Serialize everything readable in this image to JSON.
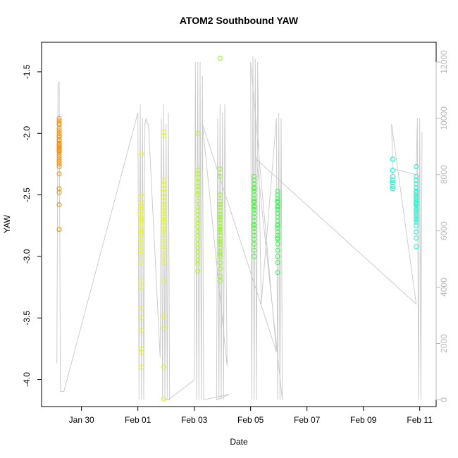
{
  "chart_data": {
    "type": "scatter",
    "title": "ATOM2 Southbound YAW",
    "xlabel": "Date",
    "ylabel": "YAW",
    "xlim": [
      "2019-01-28 14:00",
      "2019-02-11 14:00"
    ],
    "ylim": [
      -4.22,
      -1.26
    ],
    "x_ticks": [
      {
        "label": "Jan 30",
        "date": "2019-01-30"
      },
      {
        "label": "Feb 01",
        "date": "2019-02-01"
      },
      {
        "label": "Feb 03",
        "date": "2019-02-03"
      },
      {
        "label": "Feb 05",
        "date": "2019-02-05"
      },
      {
        "label": "Feb 07",
        "date": "2019-02-07"
      },
      {
        "label": "Feb 09",
        "date": "2019-02-09"
      },
      {
        "label": "Feb 11",
        "date": "2019-02-11"
      }
    ],
    "y_ticks": [
      -4.0,
      -3.5,
      -3.0,
      -2.5,
      -2.0,
      -1.5
    ],
    "y_tick_labels": [
      "-4.0",
      "-3.5",
      "-3.0",
      "-2.5",
      "-2.0",
      "-1.5"
    ],
    "right_axis": {
      "ylim": [
        -240,
        12700
      ],
      "ticks": [
        0,
        2000,
        4000,
        6000,
        8000,
        10000,
        12000
      ],
      "tick_labels": [
        "0",
        "2000",
        "4000",
        "6000",
        "8000",
        "10000",
        "12000"
      ],
      "color": "#b8b8b8"
    },
    "grid": false,
    "legend": "none",
    "series": [
      {
        "color": "#ff8c00",
        "x": [
          "2019-01-29 05:00",
          "2019-01-29 05:00",
          "2019-01-29 05:00",
          "2019-01-29 05:00",
          "2019-01-29 05:00",
          "2019-01-29 05:00",
          "2019-01-29 05:00",
          "2019-01-29 05:00",
          "2019-01-29 05:00",
          "2019-01-29 05:00",
          "2019-01-29 05:00",
          "2019-01-29 05:00",
          "2019-01-29 05:00",
          "2019-01-29 05:00",
          "2019-01-29 05:00",
          "2019-01-29 05:00",
          "2019-01-29 05:00",
          "2019-01-29 05:00",
          "2019-01-29 05:00",
          "2019-01-29 05:00",
          "2019-01-29 05:00",
          "2019-01-29 05:00",
          "2019-01-29 05:00",
          "2019-01-29 05:00",
          "2019-01-29 05:00",
          "2019-01-29 05:00",
          "2019-01-29 05:00",
          "2019-01-29 05:00",
          "2019-01-29 05:00",
          "2019-01-29 05:00"
        ],
        "y": [
          -1.88,
          -1.9,
          -1.93,
          -1.96,
          -1.98,
          -2.0,
          -2.02,
          -2.03,
          -2.05,
          -2.06,
          -2.08,
          -2.09,
          -2.1,
          -2.11,
          -2.12,
          -2.13,
          -2.14,
          -2.15,
          -2.17,
          -2.19,
          -2.21,
          -2.23,
          -2.25,
          -2.27,
          -2.33,
          -2.45,
          -2.48,
          -2.58,
          -2.78,
          -1.92
        ]
      },
      {
        "color": "#eaff00",
        "x": [
          "2019-02-01 03:00",
          "2019-02-01 03:00",
          "2019-02-01 03:00",
          "2019-02-01 03:00",
          "2019-02-01 03:00",
          "2019-02-01 03:00",
          "2019-02-01 03:00",
          "2019-02-01 03:00",
          "2019-02-01 03:00",
          "2019-02-01 03:00",
          "2019-02-01 03:00",
          "2019-02-01 03:00",
          "2019-02-01 03:00",
          "2019-02-01 03:00",
          "2019-02-01 03:00",
          "2019-02-01 03:00",
          "2019-02-01 03:00",
          "2019-02-01 03:00",
          "2019-02-01 03:00",
          "2019-02-01 03:00",
          "2019-02-01 03:00",
          "2019-02-01 03:00",
          "2019-02-01 03:00",
          "2019-02-01 03:00",
          "2019-02-01 03:00",
          "2019-02-01 03:00",
          "2019-02-01 03:00",
          "2019-02-01 03:00"
        ],
        "y": [
          -2.5,
          -2.55,
          -2.58,
          -2.62,
          -2.65,
          -2.68,
          -2.7,
          -2.72,
          -2.75,
          -2.78,
          -2.8,
          -2.82,
          -2.85,
          -2.88,
          -2.92,
          -2.95,
          -2.98,
          -3.05,
          -3.2,
          -3.25,
          -3.42,
          -3.5,
          -3.6,
          -3.75,
          -3.78,
          -3.9,
          -2.17,
          -2.6
        ]
      },
      {
        "color": "#e0ff00",
        "x": [
          "2019-02-01 22:00",
          "2019-02-01 22:00",
          "2019-02-01 22:00",
          "2019-02-01 22:00",
          "2019-02-01 22:00",
          "2019-02-01 22:00",
          "2019-02-01 22:00",
          "2019-02-01 22:00",
          "2019-02-01 22:00",
          "2019-02-01 22:00",
          "2019-02-01 22:00",
          "2019-02-01 22:00",
          "2019-02-01 22:00",
          "2019-02-01 22:00",
          "2019-02-01 22:00",
          "2019-02-01 22:00",
          "2019-02-01 22:00",
          "2019-02-01 22:00",
          "2019-02-01 22:00",
          "2019-02-01 22:00",
          "2019-02-01 22:00",
          "2019-02-01 22:00",
          "2019-02-01 22:00",
          "2019-02-01 22:00",
          "2019-02-01 22:00",
          "2019-02-01 22:00",
          "2019-02-01 22:00",
          "2019-02-01 22:00"
        ],
        "y": [
          -1.99,
          -2.02,
          -2.38,
          -2.42,
          -2.45,
          -2.48,
          -2.52,
          -2.55,
          -2.58,
          -2.6,
          -2.63,
          -2.65,
          -2.68,
          -2.7,
          -2.72,
          -2.75,
          -2.78,
          -2.8,
          -2.85,
          -2.9,
          -2.95,
          -3.0,
          -3.05,
          -3.2,
          -3.48,
          -3.58,
          -3.9,
          -4.16
        ]
      },
      {
        "color": "#a8ff00",
        "x": [
          "2019-02-03 03:00",
          "2019-02-03 03:00",
          "2019-02-03 03:00",
          "2019-02-03 03:00",
          "2019-02-03 03:00",
          "2019-02-03 03:00",
          "2019-02-03 03:00",
          "2019-02-03 03:00",
          "2019-02-03 03:00",
          "2019-02-03 03:00",
          "2019-02-03 03:00",
          "2019-02-03 03:00",
          "2019-02-03 03:00",
          "2019-02-03 03:00",
          "2019-02-03 03:00",
          "2019-02-03 03:00",
          "2019-02-03 03:00",
          "2019-02-03 03:00",
          "2019-02-03 03:00",
          "2019-02-03 03:00",
          "2019-02-03 03:00",
          "2019-02-03 03:00",
          "2019-02-03 03:00",
          "2019-02-03 03:00",
          "2019-02-03 03:00",
          "2019-02-03 03:00"
        ],
        "y": [
          -2.0,
          -2.3,
          -2.33,
          -2.36,
          -2.4,
          -2.43,
          -2.46,
          -2.5,
          -2.55,
          -2.6,
          -2.63,
          -2.66,
          -2.7,
          -2.73,
          -2.76,
          -2.8,
          -2.83,
          -2.86,
          -2.9,
          -2.93,
          -2.96,
          -3.0,
          -3.03,
          -3.06,
          -3.12,
          -2.5
        ]
      },
      {
        "color": "#88ff00",
        "x": [
          "2019-02-03 22:00",
          "2019-02-03 22:00",
          "2019-02-03 22:00",
          "2019-02-03 22:00",
          "2019-02-03 22:00",
          "2019-02-03 22:00",
          "2019-02-03 22:00",
          "2019-02-03 22:00",
          "2019-02-03 22:00",
          "2019-02-03 22:00",
          "2019-02-03 22:00",
          "2019-02-03 22:00",
          "2019-02-03 22:00",
          "2019-02-03 22:00",
          "2019-02-03 22:00",
          "2019-02-03 22:00",
          "2019-02-03 22:00",
          "2019-02-03 22:00",
          "2019-02-03 22:00",
          "2019-02-03 22:00",
          "2019-02-03 22:00",
          "2019-02-03 22:00",
          "2019-02-03 22:00",
          "2019-02-03 22:00",
          "2019-02-03 22:00",
          "2019-02-03 22:00",
          "2019-02-03 22:00"
        ],
        "y": [
          -1.39,
          -2.29,
          -2.35,
          -2.5,
          -2.55,
          -2.6,
          -2.63,
          -2.66,
          -2.7,
          -2.73,
          -2.76,
          -2.8,
          -2.83,
          -2.86,
          -2.9,
          -2.93,
          -2.96,
          -3.0,
          -3.05,
          -3.1,
          -3.16,
          -3.2,
          -2.58,
          -2.68,
          -2.78,
          -2.88,
          -2.98
        ]
      },
      {
        "color": "#3dff2e",
        "x": [
          "2019-02-05 03:00",
          "2019-02-05 03:00",
          "2019-02-05 03:00",
          "2019-02-05 03:00",
          "2019-02-05 03:00",
          "2019-02-05 03:00",
          "2019-02-05 03:00",
          "2019-02-05 03:00",
          "2019-02-05 03:00",
          "2019-02-05 03:00",
          "2019-02-05 03:00",
          "2019-02-05 03:00",
          "2019-02-05 03:00",
          "2019-02-05 03:00",
          "2019-02-05 03:00",
          "2019-02-05 03:00",
          "2019-02-05 03:00",
          "2019-02-05 03:00",
          "2019-02-05 03:00",
          "2019-02-05 03:00",
          "2019-02-05 03:00",
          "2019-02-05 03:00",
          "2019-02-05 03:00",
          "2019-02-05 03:00",
          "2019-02-05 03:00",
          "2019-02-05 03:00"
        ],
        "y": [
          -2.35,
          -2.38,
          -2.41,
          -2.44,
          -2.47,
          -2.5,
          -2.53,
          -2.56,
          -2.59,
          -2.62,
          -2.65,
          -2.68,
          -2.71,
          -2.74,
          -2.77,
          -2.8,
          -2.83,
          -2.86,
          -2.9,
          -2.95,
          -3.0,
          -2.45,
          -2.55,
          -2.65,
          -2.75,
          -2.6
        ]
      },
      {
        "color": "#2cff4a",
        "x": [
          "2019-02-05 23:00",
          "2019-02-05 23:00",
          "2019-02-05 23:00",
          "2019-02-05 23:00",
          "2019-02-05 23:00",
          "2019-02-05 23:00",
          "2019-02-05 23:00",
          "2019-02-05 23:00",
          "2019-02-05 23:00",
          "2019-02-05 23:00",
          "2019-02-05 23:00",
          "2019-02-05 23:00",
          "2019-02-05 23:00",
          "2019-02-05 23:00",
          "2019-02-05 23:00",
          "2019-02-05 23:00",
          "2019-02-05 23:00",
          "2019-02-05 23:00",
          "2019-02-05 23:00",
          "2019-02-05 23:00",
          "2019-02-05 23:00",
          "2019-02-05 23:00",
          "2019-02-05 23:00",
          "2019-02-05 23:00"
        ],
        "y": [
          -2.47,
          -2.5,
          -2.53,
          -2.56,
          -2.59,
          -2.62,
          -2.65,
          -2.68,
          -2.71,
          -2.74,
          -2.77,
          -2.8,
          -2.83,
          -2.86,
          -2.9,
          -2.95,
          -3.0,
          -3.05,
          -3.13,
          -2.55,
          -2.65,
          -2.75,
          -2.85,
          -2.6
        ]
      },
      {
        "color": "#00ffc0",
        "x": [
          "2019-02-10 01:00",
          "2019-02-10 01:00",
          "2019-02-10 01:00",
          "2019-02-10 01:00",
          "2019-02-10 01:00",
          "2019-02-10 01:00",
          "2019-02-10 01:00"
        ],
        "y": [
          -2.21,
          -2.3,
          -2.35,
          -2.4,
          -2.43,
          -2.45,
          -2.38
        ]
      },
      {
        "color": "#00ffca",
        "x": [
          "2019-02-10 21:00",
          "2019-02-10 21:00",
          "2019-02-10 21:00",
          "2019-02-10 21:00",
          "2019-02-10 21:00",
          "2019-02-10 21:00",
          "2019-02-10 21:00",
          "2019-02-10 21:00",
          "2019-02-10 21:00",
          "2019-02-10 21:00",
          "2019-02-10 21:00",
          "2019-02-10 21:00",
          "2019-02-10 21:00",
          "2019-02-10 21:00",
          "2019-02-10 21:00",
          "2019-02-10 21:00",
          "2019-02-10 21:00",
          "2019-02-10 21:00",
          "2019-02-10 21:00",
          "2019-02-10 21:00",
          "2019-02-10 21:00",
          "2019-02-10 21:00",
          "2019-02-10 21:00",
          "2019-02-10 21:00",
          "2019-02-10 21:00"
        ],
        "y": [
          -2.27,
          -2.35,
          -2.38,
          -2.41,
          -2.44,
          -2.47,
          -2.5,
          -2.52,
          -2.54,
          -2.56,
          -2.58,
          -2.6,
          -2.62,
          -2.64,
          -2.66,
          -2.68,
          -2.7,
          -2.72,
          -2.75,
          -2.8,
          -2.85,
          -2.92,
          -2.48,
          -2.52,
          -2.57
        ]
      }
    ],
    "secondary_line": {
      "color": "#c8c8c8",
      "x": [
        "2019-01-29 03:00",
        "2019-01-29 04:00",
        "2019-01-29 05:00",
        "2019-01-29 06:00",
        "2019-01-29 07:00",
        "2019-01-29 08:00",
        "2019-01-29 09:00",
        "2019-02-01 00:00",
        "2019-02-01 01:00",
        "2019-02-01 02:00",
        "2019-02-01 03:00",
        "2019-02-01 04:00",
        "2019-02-01 05:00",
        "2019-02-01 06:00",
        "2019-02-01 07:00",
        "2019-02-01 08:00",
        "2019-02-01 09:00",
        "2019-02-01 19:00",
        "2019-02-01 20:00",
        "2019-02-01 21:00",
        "2019-02-01 22:00",
        "2019-02-01 23:00",
        "2019-02-02 00:00",
        "2019-02-02 01:00",
        "2019-02-02 02:00",
        "2019-02-02 03:00",
        "2019-02-01 22:00",
        "2019-02-02 02:00",
        "2019-02-03 00:00",
        "2019-02-03 01:00",
        "2019-02-03 02:00",
        "2019-02-03 03:00",
        "2019-02-03 04:00",
        "2019-02-03 05:00",
        "2019-02-03 06:00",
        "2019-02-03 07:00",
        "2019-02-03 08:00",
        "2019-02-04 06:00",
        "2019-02-03 19:00",
        "2019-02-03 20:00",
        "2019-02-03 21:00",
        "2019-02-03 22:00",
        "2019-02-03 23:00",
        "2019-02-04 00:00",
        "2019-02-04 01:00",
        "2019-02-04 02:00",
        "2019-02-04 04:00",
        "2019-02-03 07:00",
        "2019-02-05 22:00",
        "2019-02-05 00:00",
        "2019-02-05 01:00",
        "2019-02-05 02:00",
        "2019-02-05 03:00",
        "2019-02-05 04:00",
        "2019-02-05 05:00",
        "2019-02-05 06:00",
        "2019-02-05 07:00",
        "2019-02-05 09:00",
        "2019-02-05 22:00",
        "2019-02-05 23:00",
        "2019-02-06 00:00",
        "2019-02-06 01:00",
        "2019-02-06 02:00",
        "2019-02-06 03:00",
        "2019-02-05 05:00",
        "2019-02-05 06:00",
        "2019-02-10 21:00",
        "2019-02-10 00:00",
        "2019-02-10 01:00",
        "2019-02-10 02:00",
        "2019-02-10 21:00",
        "2019-02-10 22:00",
        "2019-02-10 23:00",
        "2019-02-11 00:00",
        "2019-02-11 01:00",
        "2019-02-11 02:00"
      ],
      "y": [
        1300,
        11200,
        11300,
        300,
        300,
        300,
        300,
        10200,
        0,
        10500,
        0,
        10000,
        0,
        9800,
        10000,
        9800,
        9800,
        1500,
        10000,
        0,
        10500,
        0,
        9800,
        0,
        10200,
        0,
        0,
        0,
        700,
        12000,
        0,
        12000,
        0,
        12000,
        0,
        11500,
        0,
        200,
        0,
        10000,
        0,
        10500,
        0,
        10200,
        0,
        10500,
        1200,
        9800,
        1700,
        12000,
        0,
        12200,
        0,
        12100,
        0,
        12000,
        8600,
        3400,
        10000,
        0,
        10200,
        0,
        10000,
        0,
        8600,
        8500,
        3400,
        9800,
        8200,
        8200,
        8000,
        10000,
        0,
        10000,
        0,
        9500
      ]
    }
  }
}
